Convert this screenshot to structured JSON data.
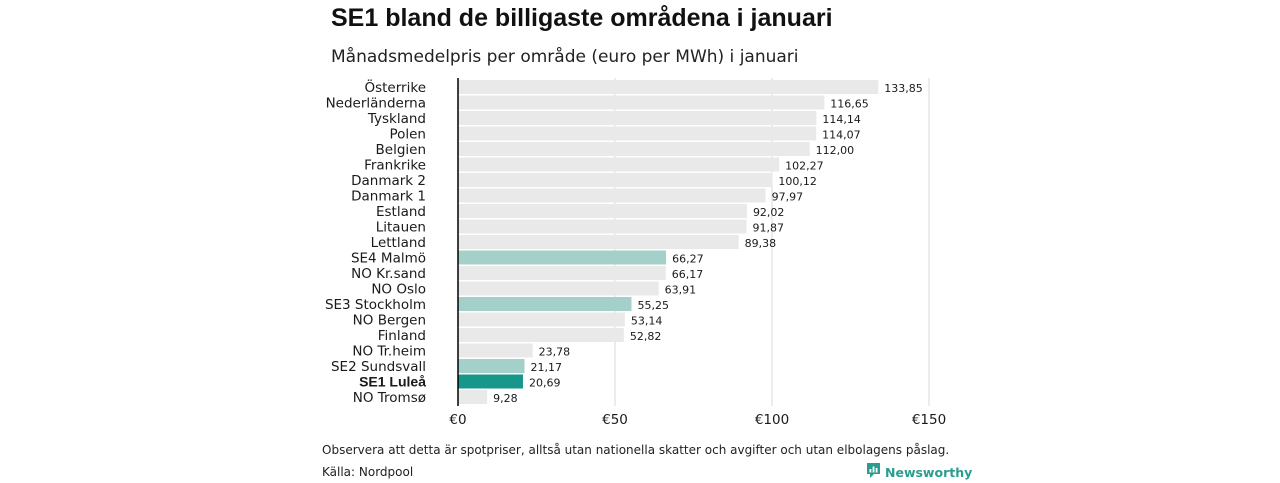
{
  "title": "SE1 bland de billigaste områdena i januari",
  "subtitle": "Månadsmedelpris per område (euro per MWh) i januari",
  "footnote": "Observera att detta är spotpriser, alltså utan nationella skatter och avgifter och utan elbolagens påslag.",
  "source": "Källa: Nordpool",
  "brand": {
    "name": "Newsworthy",
    "icon": "newsworthy-logo-icon"
  },
  "colors": {
    "default": "#e9e9e9",
    "secondary": "#a5d0ca",
    "highlight": "#17968a",
    "grid": "#d9d9d9",
    "axis": "#000000"
  },
  "chart_data": {
    "type": "bar",
    "orientation": "horizontal",
    "categories": [
      "Österrike",
      "Nederländerna",
      "Tyskland",
      "Polen",
      "Belgien",
      "Frankrike",
      "Danmark  2",
      "Danmark  1",
      "Estland",
      "Litauen",
      "Lettland",
      "SE4  Malmö",
      "NO Kr.sand",
      "NO Oslo",
      "SE3  Stockholm",
      "NO Bergen",
      "Finland",
      "NO Tr.heim",
      "SE2  Sundsvall",
      "SE1 Luleå",
      "NO Tromsø"
    ],
    "values": [
      133.85,
      116.65,
      114.14,
      114.07,
      112.0,
      102.27,
      100.12,
      97.97,
      92.02,
      91.87,
      89.38,
      66.27,
      66.17,
      63.91,
      55.25,
      53.14,
      52.82,
      23.78,
      21.17,
      20.69,
      9.28
    ],
    "value_labels": [
      "133,85",
      "116,65",
      "114,14",
      "114,07",
      "112,00",
      "102,27",
      "100,12",
      "97,97",
      "92,02",
      "91,87",
      "89,38",
      "66,27",
      "66,17",
      "63,91",
      "55,25",
      "53,14",
      "52,82",
      "23,78",
      "21,17",
      "20,69",
      "9,28"
    ],
    "bar_style": [
      "default",
      "default",
      "default",
      "default",
      "default",
      "default",
      "default",
      "default",
      "default",
      "default",
      "default",
      "secondary",
      "default",
      "default",
      "secondary",
      "default",
      "default",
      "default",
      "secondary",
      "highlight",
      "default"
    ],
    "bold_category": "SE1 Luleå",
    "xlim": [
      0,
      150
    ],
    "xticks": [
      0,
      50,
      100,
      150
    ],
    "xtick_labels": [
      "€0",
      "€50",
      "€100",
      "€150"
    ],
    "grid": true
  }
}
